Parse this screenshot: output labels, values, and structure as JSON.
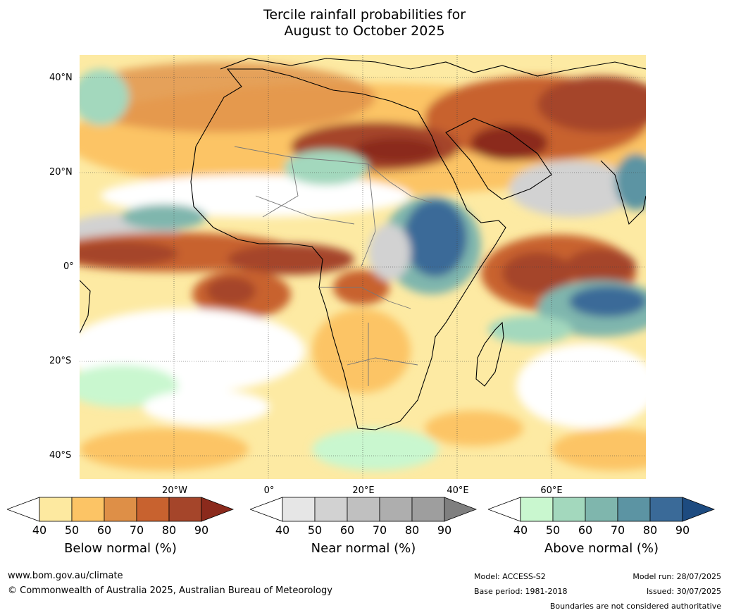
{
  "title_line1": "Tercile rainfall probabilities for",
  "title_line2": "August to October 2025",
  "lat_labels": [
    "40°N",
    "20°N",
    "0°",
    "20°S",
    "40°S"
  ],
  "lon_labels": [
    "20°W",
    "0°",
    "20°E",
    "40°E",
    "60°E"
  ],
  "colorbars": [
    {
      "label": "Below normal (%)",
      "ticks": [
        "40",
        "50",
        "60",
        "70",
        "80",
        "90"
      ],
      "colors": [
        "#ffffff",
        "#fde9a0",
        "#fcc465",
        "#de8f47",
        "#c8622f",
        "#a5452a",
        "#8b2a1c"
      ]
    },
    {
      "label": "Near normal (%)",
      "ticks": [
        "40",
        "50",
        "60",
        "70",
        "80",
        "90"
      ],
      "colors": [
        "#ffffff",
        "#e6e6e6",
        "#d2d2d2",
        "#c0c0c0",
        "#aeaeae",
        "#9e9e9e",
        "#7f7f7f"
      ]
    },
    {
      "label": "Above normal (%)",
      "ticks": [
        "40",
        "50",
        "60",
        "70",
        "80",
        "90"
      ],
      "colors": [
        "#ffffff",
        "#c9f7cf",
        "#a3d8bd",
        "#7fb6ad",
        "#5c94a3",
        "#3a6a98",
        "#1d4b80"
      ]
    }
  ],
  "footer": {
    "website": "www.bom.gov.au/climate",
    "copyright": "© Commonwealth of Australia 2025, Australian Bureau of Meteorology",
    "model": "Model: ACCESS-S2",
    "base_period": "Base period: 1981-2018",
    "model_run": "Model run: 28/07/2025",
    "issued": "Issued: 30/07/2025",
    "disclaimer": "Boundaries are not considered authoritative"
  }
}
